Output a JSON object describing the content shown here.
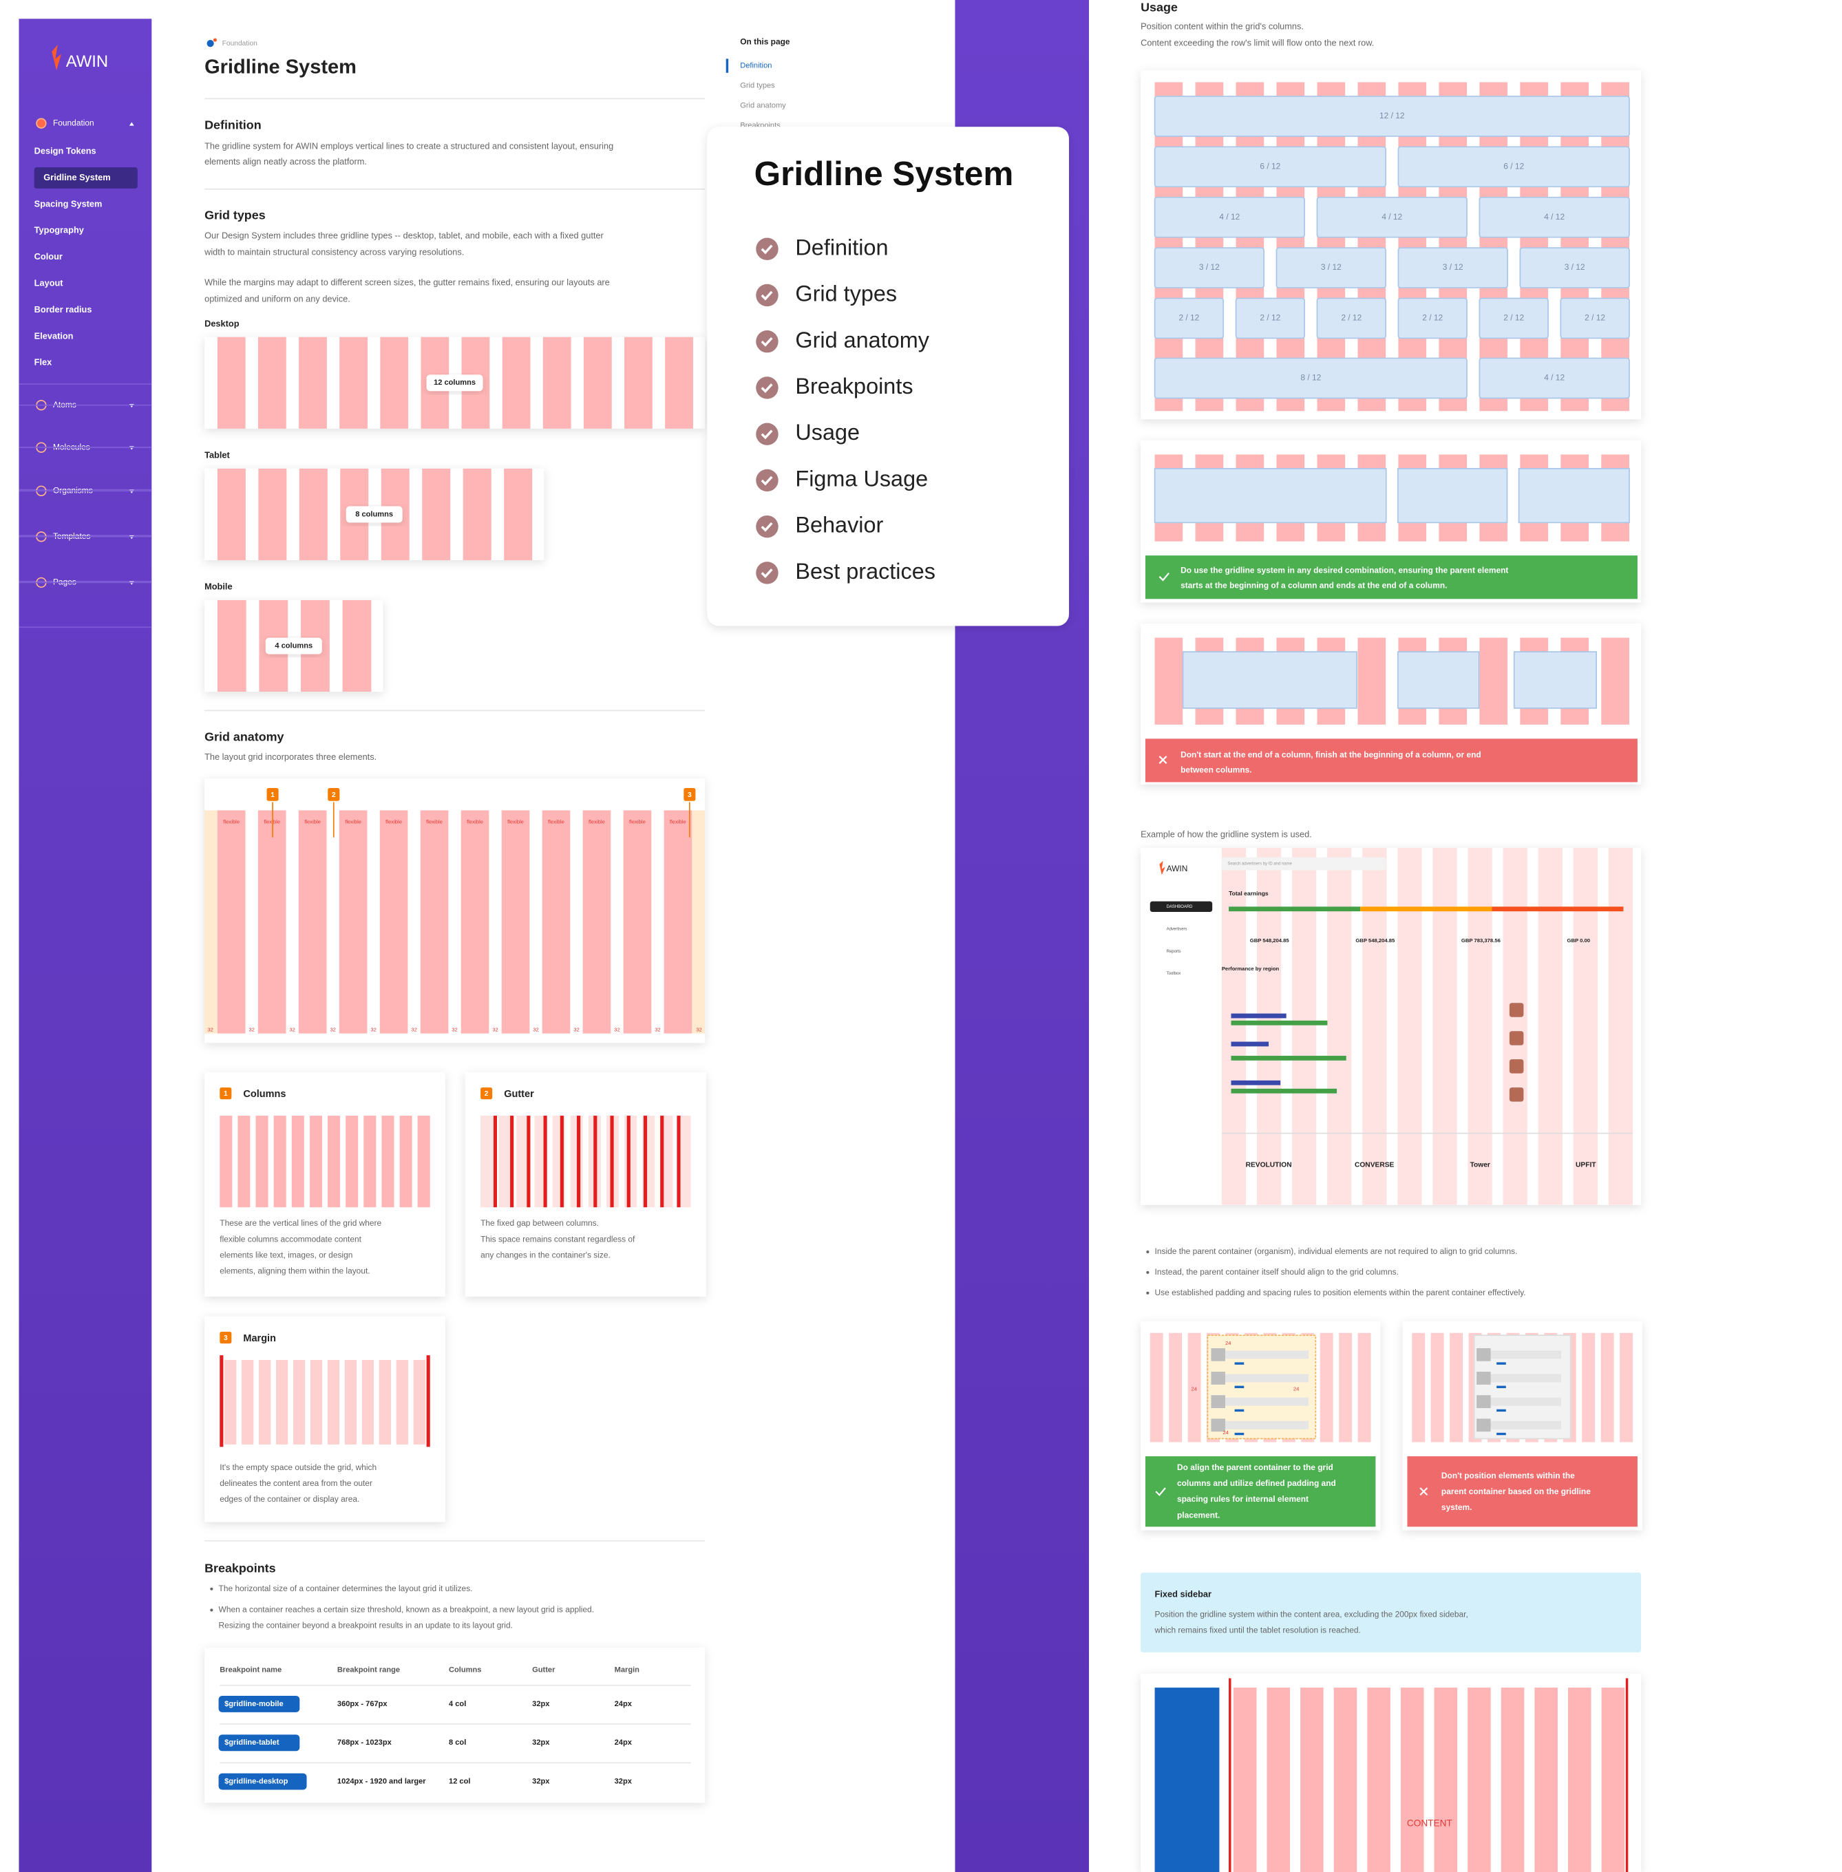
{
  "sidebar": {
    "logo": "AWIN",
    "groups": [
      {
        "label": "Foundation",
        "items": [
          "Design Tokens",
          "Gridline System",
          "Spacing System",
          "Typography",
          "Colour",
          "Layout",
          "Border radius",
          "Elevation",
          "Flex"
        ]
      },
      {
        "label": "Atoms"
      },
      {
        "label": "Molecules"
      },
      {
        "label": "Organisms"
      },
      {
        "label": "Templates"
      },
      {
        "label": "Pages"
      }
    ]
  },
  "header": {
    "breadcrumb": "Foundation",
    "title": "Gridline System"
  },
  "definition": {
    "heading": "Definition",
    "text": [
      "The gridline system for AWIN employs vertical lines to create a structured and consistent layout, ensuring",
      "elements align neatly across the platform."
    ]
  },
  "grid_types": {
    "heading": "Grid types",
    "paragraphs": [
      [
        "Our Design System includes three gridline types -- desktop, tablet, and mobile, each with a fixed gutter",
        "width to maintain structural consistency across varying resolutions."
      ],
      [
        "While the margins may adapt to different screen sizes, the gutter remains fixed, ensuring our layouts are",
        "optimized and uniform on any device."
      ]
    ],
    "examples": [
      {
        "label": "Desktop",
        "badge": "12 columns",
        "columns": 12
      },
      {
        "label": "Tablet",
        "badge": "8 columns",
        "columns": 8
      },
      {
        "label": "Mobile",
        "badge": "4 columns",
        "columns": 4
      }
    ]
  },
  "grid_anatomy": {
    "heading": "Grid anatomy",
    "text": "The layout grid incorporates three elements.",
    "markers": [
      "1",
      "2",
      "3"
    ],
    "column_label": "flexible",
    "gutter_label": "32",
    "cards": [
      {
        "number": "1",
        "title": "Columns",
        "text": [
          "These are the vertical lines of the grid where",
          "flexible columns accommodate content",
          "elements like text, images, or design",
          "elements, aligning them within the layout."
        ]
      },
      {
        "number": "2",
        "title": "Gutter",
        "text": [
          "The fixed gap between columns.",
          "This space remains constant regardless of",
          "any changes in the container's size."
        ]
      },
      {
        "number": "3",
        "title": "Margin",
        "text": [
          "It's the empty space outside the grid, which",
          "delineates the content area from the outer",
          "edges of the container or display area."
        ]
      }
    ]
  },
  "breakpoints": {
    "heading": "Breakpoints",
    "bullets": [
      [
        "The horizontal size of a container determines the layout grid it utilizes."
      ],
      [
        "When a container reaches a certain size threshold, known as a breakpoint, a new layout grid is applied.",
        "Resizing the container beyond a breakpoint results in an update to its layout grid."
      ]
    ],
    "table": {
      "columns": [
        "Breakpoint name",
        "Breakpoint range",
        "Columns",
        "Gutter",
        "Margin"
      ],
      "rows": [
        [
          "$gridline-mobile",
          "360px - 767px",
          "4 col",
          "32px",
          "24px"
        ],
        [
          "$gridline-tablet",
          "768px - 1023px",
          "8 col",
          "32px",
          "24px"
        ],
        [
          "$gridline-desktop",
          "1024px - 1920 and larger",
          "12 col",
          "32px",
          "32px"
        ]
      ]
    }
  },
  "toc": {
    "title": "On this page",
    "items": [
      "Definition",
      "Grid types",
      "Grid anatomy",
      "Breakpoints"
    ]
  },
  "overview_card": {
    "title": "Gridline System",
    "items": [
      "Definition",
      "Grid types",
      "Grid anatomy",
      "Breakpoints",
      "Usage",
      "Figma Usage",
      "Behavior",
      "Best practices"
    ]
  },
  "usage": {
    "heading": "Usage",
    "text": [
      "Position content within the grid's columns.",
      "Content exceeding the row's limit will flow onto the next row."
    ],
    "rows": [
      [
        {
          "span": 12,
          "label": "12 / 12"
        }
      ],
      [
        {
          "span": 6,
          "label": "6 / 12"
        },
        {
          "span": 6,
          "label": "6 / 12"
        }
      ],
      [
        {
          "span": 4,
          "label": "4 / 12"
        },
        {
          "span": 4,
          "label": "4 / 12"
        },
        {
          "span": 4,
          "label": "4 / 12"
        }
      ],
      [
        {
          "span": 3,
          "label": "3 / 12"
        },
        {
          "span": 3,
          "label": "3 / 12"
        },
        {
          "span": 3,
          "label": "3 / 12"
        },
        {
          "span": 3,
          "label": "3 / 12"
        }
      ],
      [
        {
          "span": 2,
          "label": "2 / 12"
        },
        {
          "span": 2,
          "label": "2 / 12"
        },
        {
          "span": 2,
          "label": "2 / 12"
        },
        {
          "span": 2,
          "label": "2 / 12"
        },
        {
          "span": 2,
          "label": "2 / 12"
        },
        {
          "span": 2,
          "label": "2 / 12"
        }
      ],
      [
        {
          "span": 8,
          "label": "8 / 12"
        },
        {
          "span": 4,
          "label": "4 / 12"
        }
      ]
    ],
    "do": [
      "Do use the gridline system in any desired combination, ensuring the parent element",
      "starts at the beginning of a column and ends at the end of a column."
    ],
    "dont": [
      "Don't start at the end of a column, finish at the beginning of a column, or end",
      "between columns."
    ],
    "example_caption": "Example of how the gridline system is used.",
    "dashboard": {
      "logo": "AWIN",
      "search": "Search advertisers by ID and name",
      "nav": [
        "DASHBOARD",
        "Advertisers",
        "Reports",
        "Toolbox"
      ],
      "total": "Total earnings",
      "amounts": [
        "GBP 548,204.85",
        "GBP 548,204.85",
        "GBP 783,378.56",
        "GBP 0.00"
      ],
      "performance": "Performance by region",
      "brands": [
        "REVOLUTION",
        "CONVERSE",
        "Tower",
        "UPFIT"
      ]
    },
    "bullets": [
      "Inside the parent container (organism), individual elements are not required to align to grid columns.",
      "Instead, the parent container itself should align to the grid columns.",
      "Use established padding and spacing rules to position elements within the parent container effectively."
    ],
    "spacing_label": "24",
    "do2": [
      "Do align the parent container to the grid",
      "columns and utilize defined padding and",
      "spacing rules for internal element",
      "placement."
    ],
    "dont2": [
      "Don't position elements within the",
      "parent container based on the gridline",
      "system."
    ],
    "fixed_sidebar": {
      "title": "Fixed sidebar",
      "text": [
        "Position the gridline system within the content area, excluding the 200px fixed sidebar,",
        "which remains fixed until the tablet resolution is reached."
      ]
    },
    "content_label": "CONTENT"
  }
}
